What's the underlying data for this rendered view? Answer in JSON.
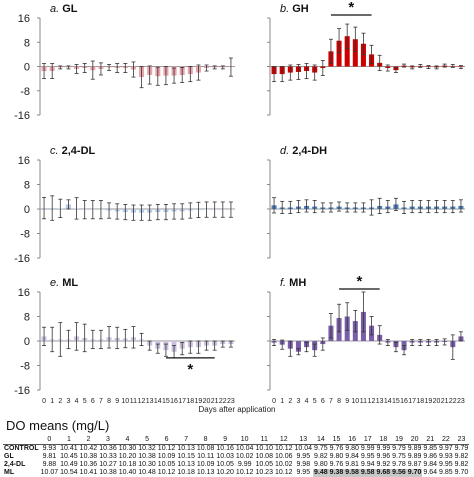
{
  "chart_data": [
    {
      "type": "bar",
      "panel_label": "a. GL",
      "ylim": [
        -16,
        16
      ],
      "yticks": [
        16,
        8,
        0,
        -8,
        -16
      ],
      "color": "#e8a3ab",
      "x": [
        0,
        1,
        2,
        3,
        4,
        5,
        6,
        7,
        8,
        9,
        10,
        11,
        12,
        13,
        14,
        15,
        16,
        17,
        18,
        19,
        20,
        21,
        22,
        23
      ],
      "values": [
        -1.5,
        -1.5,
        -0.3,
        -0.3,
        -0.8,
        -0.5,
        -1.2,
        -0.8,
        -0.3,
        -0.5,
        -0.5,
        -1.0,
        -3.5,
        -2.8,
        -3.2,
        -3.0,
        -3.0,
        -2.8,
        -2.5,
        -2.0,
        -0.5,
        -0.3,
        -0.3,
        -0.2
      ],
      "errors": [
        2.5,
        2.5,
        0.5,
        0.5,
        1.5,
        1.5,
        3.0,
        2.0,
        1.0,
        1.5,
        1.5,
        2.5,
        3.5,
        3.0,
        3.0,
        3.0,
        2.5,
        2.5,
        2.5,
        2.5,
        1.0,
        0.5,
        0.5,
        3.0
      ],
      "significance": null
    },
    {
      "type": "bar",
      "panel_label": "b. GH",
      "ylim": [
        -16,
        16
      ],
      "yticks": [
        16,
        8,
        0,
        -8,
        -16
      ],
      "color": "#cc0000",
      "x": [
        0,
        1,
        2,
        3,
        4,
        5,
        6,
        7,
        8,
        9,
        10,
        11,
        12,
        13,
        14,
        15,
        16,
        17,
        18,
        19,
        20,
        21,
        22,
        23
      ],
      "values": [
        -2.5,
        -2.5,
        -2.0,
        -1.8,
        -1.5,
        -2.0,
        -0.5,
        5.0,
        8.5,
        10.0,
        9.0,
        7.5,
        4.0,
        1.2,
        -0.5,
        -1.2,
        0.3,
        -0.3,
        0.2,
        -0.2,
        -0.3,
        0.3,
        0.2,
        -0.2
      ],
      "errors": [
        2.5,
        2.5,
        2.5,
        2.5,
        2.5,
        2.5,
        2.5,
        4.0,
        4.0,
        4.0,
        4.0,
        3.5,
        3.0,
        2.5,
        1.0,
        0.8,
        0.5,
        0.5,
        0.5,
        0.5,
        0.5,
        0.5,
        0.5,
        0.5
      ],
      "significance": {
        "label": "*",
        "from": 7,
        "to": 12
      }
    },
    {
      "type": "bar",
      "panel_label": "c. 2,4-DL",
      "ylim": [
        -16,
        16
      ],
      "yticks": [
        16,
        8,
        0,
        -8,
        -16
      ],
      "color": "#b8cbe6",
      "x": [
        0,
        1,
        2,
        3,
        4,
        5,
        6,
        7,
        8,
        9,
        10,
        11,
        12,
        13,
        14,
        15,
        16,
        17,
        18,
        19,
        20,
        21,
        22,
        23
      ],
      "values": [
        0.3,
        0.3,
        0.2,
        1.5,
        0.2,
        -0.2,
        -0.2,
        -0.2,
        -0.5,
        -0.8,
        -1.0,
        -1.2,
        -1.2,
        -1.2,
        -1.0,
        -1.0,
        -0.8,
        -0.8,
        -0.5,
        -0.3,
        -0.2,
        -0.2,
        -0.2,
        -0.2
      ],
      "errors": [
        3.5,
        4.0,
        3.0,
        1.5,
        3.5,
        3.0,
        3.0,
        3.0,
        2.5,
        2.5,
        2.5,
        2.5,
        2.5,
        2.5,
        2.5,
        2.5,
        2.5,
        2.5,
        2.5,
        2.5,
        2.5,
        2.5,
        2.5,
        2.5
      ],
      "significance": null
    },
    {
      "type": "bar",
      "panel_label": "d. 2,4-DH",
      "ylim": [
        -16,
        16
      ],
      "yticks": [
        16,
        8,
        0,
        -8,
        -16
      ],
      "color": "#4f7bb5",
      "x": [
        0,
        1,
        2,
        3,
        4,
        5,
        6,
        7,
        8,
        9,
        10,
        11,
        12,
        13,
        14,
        15,
        16,
        17,
        18,
        19,
        20,
        21,
        22,
        23
      ],
      "values": [
        1.2,
        0.5,
        0.5,
        0.8,
        1.0,
        0.8,
        0.5,
        0.5,
        0.8,
        0.5,
        0.5,
        0.5,
        0.5,
        1.0,
        0.8,
        1.5,
        0.5,
        0.8,
        0.8,
        0.8,
        0.8,
        0.8,
        0.8,
        1.0
      ],
      "errors": [
        2.5,
        2.0,
        2.0,
        2.0,
        2.0,
        2.0,
        1.5,
        1.5,
        1.5,
        1.5,
        1.5,
        1.5,
        2.5,
        2.5,
        2.0,
        2.0,
        2.0,
        2.0,
        2.0,
        2.0,
        2.0,
        2.0,
        2.0,
        2.0
      ],
      "significance": null
    },
    {
      "type": "bar",
      "panel_label": "e. ML",
      "ylim": [
        -16,
        16
      ],
      "yticks": [
        16,
        8,
        0,
        -8,
        -16
      ],
      "color": "#ccc2e0",
      "x": [
        0,
        1,
        2,
        3,
        4,
        5,
        6,
        7,
        8,
        9,
        10,
        11,
        12,
        13,
        14,
        15,
        16,
        17,
        18,
        19,
        20,
        21,
        22,
        23
      ],
      "values": [
        1.5,
        0.5,
        0.5,
        0.5,
        1.5,
        1.0,
        0.5,
        0.5,
        1.2,
        1.0,
        0.8,
        1.2,
        0.5,
        -1.5,
        -2.5,
        -3.0,
        -3.5,
        -2.5,
        -2.0,
        -2.0,
        -1.5,
        -1.5,
        -1.0,
        -1.0
      ],
      "errors": [
        3.0,
        4.0,
        5.5,
        3.0,
        4.5,
        4.5,
        3.0,
        3.0,
        3.5,
        3.5,
        3.0,
        3.5,
        2.0,
        1.5,
        1.5,
        2.0,
        2.0,
        2.0,
        2.0,
        2.0,
        1.5,
        1.5,
        1.0,
        1.0
      ],
      "significance": {
        "label": "*",
        "from": 15,
        "to": 21
      }
    },
    {
      "type": "bar",
      "panel_label": "f. MH",
      "ylim": [
        -16,
        16
      ],
      "yticks": [
        16,
        8,
        0,
        -8,
        -16
      ],
      "color": "#7a5fa8",
      "x": [
        0,
        1,
        2,
        3,
        4,
        5,
        6,
        7,
        8,
        9,
        10,
        11,
        12,
        13,
        14,
        15,
        16,
        17,
        18,
        19,
        20,
        21,
        22,
        23
      ],
      "values": [
        -0.5,
        -1.2,
        -2.5,
        -3.5,
        -2.0,
        -3.0,
        -1.0,
        5.0,
        7.5,
        8.0,
        6.5,
        9.5,
        5.0,
        2.0,
        -0.5,
        -2.0,
        -3.0,
        -0.5,
        -0.5,
        -0.5,
        -0.5,
        -0.3,
        -2.0,
        1.5
      ],
      "errors": [
        1.0,
        1.5,
        2.5,
        1.0,
        1.5,
        2.0,
        2.0,
        4.0,
        4.5,
        4.5,
        3.5,
        6.5,
        3.0,
        3.0,
        1.0,
        1.5,
        1.5,
        1.0,
        1.0,
        1.0,
        1.0,
        1.0,
        4.0,
        1.5
      ],
      "significance": {
        "label": "*",
        "from": 8,
        "to": 13
      }
    }
  ],
  "xlabel": "Days after application",
  "do_table": {
    "title": "DO means (mg/L)",
    "days": [
      "0",
      "1",
      "2",
      "3",
      "4",
      "5",
      "6",
      "7",
      "8",
      "9",
      "10",
      "11",
      "12",
      "13",
      "14",
      "15",
      "16",
      "17",
      "18",
      "19",
      "20",
      "21",
      "22",
      "23"
    ],
    "rows": [
      {
        "label": "CONTROL",
        "values": [
          "9.93",
          "10.41",
          "10.42",
          "10.36",
          "10.30",
          "10.32",
          "10.12",
          "10.13",
          "10.08",
          "10.16",
          "10.04",
          "10.10",
          "10.12",
          "10.04",
          "9.75",
          "9.76",
          "9.80",
          "9.99",
          "9.99",
          "9.79",
          "9.89",
          "9.85",
          "9.97",
          "9.79"
        ],
        "hl": []
      },
      {
        "label": "GL",
        "values": [
          "9.81",
          "10.45",
          "10.38",
          "10.33",
          "10.20",
          "10.38",
          "10.09",
          "10.15",
          "10.11",
          "10.03",
          "10.02",
          "10.08",
          "10.06",
          "9.95",
          "9.82",
          "9.80",
          "9.84",
          "9.95",
          "9.96",
          "9.75",
          "9.89",
          "9.86",
          "9.93",
          "9.82"
        ],
        "hl": []
      },
      {
        "label": "2,4-DL",
        "values": [
          "9.88",
          "10.49",
          "10.36",
          "10.27",
          "10.18",
          "10.30",
          "10.05",
          "10.13",
          "10.09",
          "10.05",
          "9.99",
          "10.05",
          "10.02",
          "9.98",
          "9.80",
          "9.76",
          "9.81",
          "9.94",
          "9.92",
          "9.78",
          "9.87",
          "9.84",
          "9.95",
          "9.82"
        ],
        "hl": []
      },
      {
        "label": "ML",
        "values": [
          "10.07",
          "10.54",
          "10.41",
          "10.38",
          "10.40",
          "10.48",
          "10.12",
          "10.18",
          "10.13",
          "10.20",
          "10.12",
          "10.23",
          "10.12",
          "9.95",
          "9.48",
          "9.38",
          "9.58",
          "9.58",
          "9.68",
          "9.56",
          "9.70",
          "9.64",
          "9.85",
          "9.70"
        ],
        "hl": [
          14,
          15,
          16,
          17,
          18,
          19,
          20
        ]
      }
    ]
  }
}
